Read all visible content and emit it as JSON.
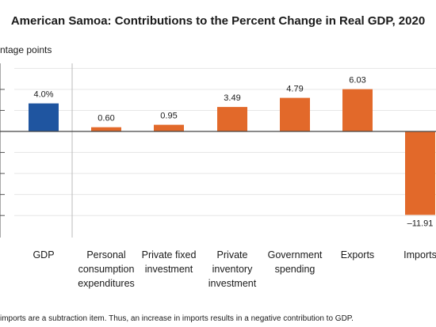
{
  "chart_data": {
    "type": "bar",
    "title": "American Samoa: Contributions to the Percent Change in Real GDP, 2020",
    "ylabel": "ntage points",
    "footnote": "imports are a subtraction item. Thus, an increase in imports results in a negative contribution to GDP.",
    "categories": [
      [
        "GDP"
      ],
      [
        "Personal",
        "consumption",
        "expenditures"
      ],
      [
        "Private fixed",
        "investment"
      ],
      [
        "Private",
        "inventory",
        "investment"
      ],
      [
        "Government",
        "spending"
      ],
      [
        "Exports"
      ],
      [
        "Imports"
      ]
    ],
    "values": [
      4.0,
      0.6,
      0.95,
      3.49,
      4.79,
      6.03,
      -11.91
    ],
    "value_labels": [
      "4.0%",
      "0.60",
      "0.95",
      "3.49",
      "4.79",
      "6.03",
      "–11.91"
    ],
    "colors": [
      "#1f55a0",
      "#e2692a",
      "#e2692a",
      "#e2692a",
      "#e2692a",
      "#e2692a",
      "#e2692a"
    ],
    "gridlines": true
  }
}
